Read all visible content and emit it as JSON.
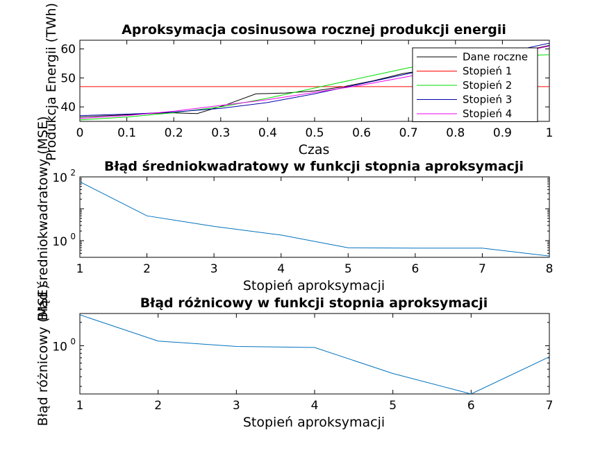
{
  "chart_data": [
    {
      "type": "line",
      "title": "Aproksymacja cosinusowa rocznej produkcji energii",
      "xlabel": "Czas",
      "ylabel": "Produkcja Energii (TWh)",
      "xlim": [
        0,
        1
      ],
      "ylim": [
        35,
        63
      ],
      "xticks": [
        "0",
        "0.1",
        "0.2",
        "0.3",
        "0.4",
        "0.5",
        "0.6",
        "0.7",
        "0.8",
        "0.9",
        "1"
      ],
      "yticks": [
        "40",
        "50",
        "60"
      ],
      "legend_position": "top-right",
      "series": [
        {
          "name": "Dane roczne",
          "color": "#000000",
          "x": [
            0,
            0.0625,
            0.125,
            0.1875,
            0.25,
            0.3125,
            0.375,
            0.4375,
            0.5,
            0.5625,
            0.625,
            0.6875,
            0.75,
            0.8125,
            0.875,
            0.9375,
            1
          ],
          "y": [
            36.5,
            37,
            37.5,
            38,
            37.7,
            40.8,
            44.5,
            44.8,
            45.5,
            47,
            49,
            51.5,
            53,
            55,
            57,
            59,
            61.2
          ]
        },
        {
          "name": "Stopień 1",
          "color": "#ff0000",
          "x": [
            0,
            1
          ],
          "y": [
            47,
            47
          ]
        },
        {
          "name": "Stopień 2",
          "color": "#00dd00",
          "x": [
            0,
            0.1,
            0.2,
            0.3,
            0.4,
            0.5,
            0.6,
            0.7,
            0.8,
            0.9,
            1
          ],
          "y": [
            35.5,
            36.5,
            38,
            40,
            43,
            46.5,
            50,
            53.5,
            56,
            57.5,
            58
          ]
        },
        {
          "name": "Stopień 3",
          "color": "#0000aa",
          "x": [
            0,
            0.1,
            0.2,
            0.3,
            0.4,
            0.5,
            0.6,
            0.7,
            0.8,
            0.9,
            1
          ],
          "y": [
            37,
            37.5,
            38.2,
            39.5,
            41.5,
            44.5,
            48,
            51.5,
            55,
            58.5,
            62
          ]
        },
        {
          "name": "Stopień 4",
          "color": "#ee00ee",
          "x": [
            0,
            0.1,
            0.2,
            0.3,
            0.4,
            0.5,
            0.6,
            0.7,
            0.8,
            0.9,
            1
          ],
          "y": [
            36,
            37,
            38.5,
            40.5,
            42.5,
            45,
            47.5,
            50.5,
            54,
            57.5,
            61
          ]
        }
      ]
    },
    {
      "type": "line",
      "title": "Błąd średniokwadratowy w funkcji stopnia aproksymacji",
      "xlabel": "Stopień aproksymacji",
      "ylabel": "Błąd średniokwadratowy (MSE)",
      "yscale": "log",
      "xlim": [
        1,
        8
      ],
      "ylim": [
        0.3,
        100
      ],
      "xticks": [
        "1",
        "2",
        "3",
        "4",
        "5",
        "6",
        "7",
        "8"
      ],
      "yticks": [
        {
          "base": "10",
          "exp": "0",
          "value": 1
        },
        {
          "base": "10",
          "exp": "2",
          "value": 100
        }
      ],
      "series": [
        {
          "color": "#0072bd",
          "x": [
            1,
            2,
            3,
            4,
            5,
            6,
            7,
            8
          ],
          "y": [
            70,
            6,
            2.8,
            1.5,
            0.6,
            0.58,
            0.58,
            0.33
          ]
        }
      ]
    },
    {
      "type": "line",
      "title": "Błąd różnicowy w funkcji stopnia aproksymacji",
      "xlabel": "Stopień aproksymacji",
      "ylabel": "Błąd różnicowy (MSE)",
      "yscale": "log",
      "xlim": [
        1,
        7
      ],
      "ylim": [
        0.24,
        2.6
      ],
      "xticks": [
        "1",
        "2",
        "3",
        "4",
        "5",
        "6",
        "7"
      ],
      "yticks": [
        {
          "base": "10",
          "exp": "0",
          "value": 1
        }
      ],
      "series": [
        {
          "color": "#0072bd",
          "x": [
            1,
            2,
            3,
            4,
            5,
            6,
            7
          ],
          "y": [
            2.5,
            1.15,
            0.98,
            0.95,
            0.44,
            0.24,
            0.72
          ]
        }
      ]
    }
  ]
}
